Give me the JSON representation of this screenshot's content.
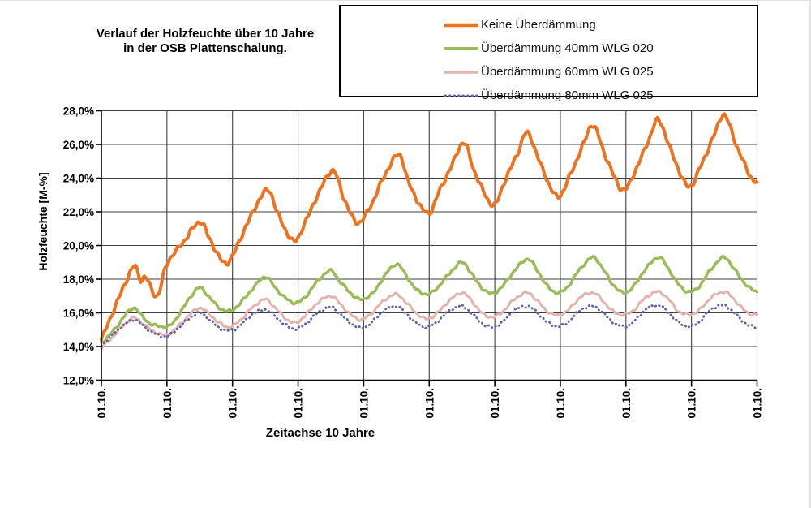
{
  "chart_data": {
    "type": "line",
    "title": "Verlauf der Holzfeuchte über 10 Jahre in der OSB Plattenschalung.",
    "title_lines": [
      "Verlauf der Holzfeuchte über 10 Jahre",
      "in der OSB Plattenschalung."
    ],
    "xlabel": "Zeitachse 10 Jahre",
    "ylabel": "Holzfeuchte [M-%]",
    "xlim": [
      0,
      10
    ],
    "ylim": [
      12,
      28
    ],
    "grid": true,
    "legend_position": "top-right",
    "axis_color": "#000000",
    "grid_color": "#3f3f3f",
    "y_tick_values": [
      12,
      14,
      16,
      18,
      20,
      22,
      24,
      26,
      28
    ],
    "y_tick_labels": [
      "12,0%",
      "14,0%",
      "16,0%",
      "18,0%",
      "20,0%",
      "22,0%",
      "24,0%",
      "26,0%",
      "28,0%"
    ],
    "x_tick_labels": [
      "01.10.",
      "01.10.",
      "01.10.",
      "01.10.",
      "01.10.",
      "01.10.",
      "01.10.",
      "01.10.",
      "01.10.",
      "01.10.",
      "01.10."
    ],
    "series": [
      {
        "name": "Keine Überdämmung",
        "color": "#ED7320",
        "line_style": "solid",
        "line_width": 4,
        "points": [
          [
            0,
            14.4
          ],
          [
            0.15,
            15.8
          ],
          [
            0.3,
            17.2
          ],
          [
            0.45,
            18.5
          ],
          [
            0.52,
            18.75
          ],
          [
            0.6,
            17.95
          ],
          [
            0.68,
            18.1
          ],
          [
            0.85,
            17.0
          ],
          [
            1.0,
            18.9
          ],
          [
            1.25,
            20.2
          ],
          [
            1.5,
            21.4
          ],
          [
            1.65,
            20.4
          ],
          [
            1.86,
            19.0
          ],
          [
            2.0,
            19.4
          ],
          [
            2.25,
            21.5
          ],
          [
            2.53,
            23.3
          ],
          [
            2.7,
            21.8
          ],
          [
            2.93,
            20.25
          ],
          [
            3.1,
            21.3
          ],
          [
            3.3,
            23.0
          ],
          [
            3.53,
            24.45
          ],
          [
            3.7,
            22.8
          ],
          [
            3.9,
            21.35
          ],
          [
            4.1,
            22.3
          ],
          [
            4.3,
            24.0
          ],
          [
            4.54,
            25.4
          ],
          [
            4.7,
            23.6
          ],
          [
            4.97,
            21.9
          ],
          [
            5.15,
            23.2
          ],
          [
            5.35,
            24.8
          ],
          [
            5.53,
            26.1
          ],
          [
            5.7,
            24.3
          ],
          [
            5.97,
            22.4
          ],
          [
            6.15,
            23.8
          ],
          [
            6.35,
            25.5
          ],
          [
            6.5,
            26.7
          ],
          [
            6.7,
            24.8
          ],
          [
            6.95,
            22.9
          ],
          [
            7.15,
            24.2
          ],
          [
            7.35,
            26.0
          ],
          [
            7.5,
            27.15
          ],
          [
            7.7,
            25.2
          ],
          [
            7.95,
            23.3
          ],
          [
            8.15,
            24.5
          ],
          [
            8.35,
            26.3
          ],
          [
            8.5,
            27.45
          ],
          [
            8.7,
            25.5
          ],
          [
            8.95,
            23.5
          ],
          [
            9.15,
            24.8
          ],
          [
            9.35,
            26.6
          ],
          [
            9.5,
            27.75
          ],
          [
            9.7,
            25.8
          ],
          [
            9.9,
            24.1
          ],
          [
            10,
            23.75
          ]
        ]
      },
      {
        "name": "Überdämmung 40mm WLG 020",
        "color": "#9BBB59",
        "line_style": "solid",
        "line_width": 3.5,
        "points": [
          [
            0,
            14.2
          ],
          [
            0.2,
            15.0
          ],
          [
            0.35,
            15.8
          ],
          [
            0.5,
            16.3
          ],
          [
            0.62,
            15.8
          ],
          [
            0.75,
            15.35
          ],
          [
            0.9,
            15.2
          ],
          [
            1.05,
            15.25
          ],
          [
            1.2,
            16.0
          ],
          [
            1.35,
            16.9
          ],
          [
            1.5,
            17.5
          ],
          [
            1.65,
            16.9
          ],
          [
            1.8,
            16.3
          ],
          [
            1.95,
            16.1
          ],
          [
            2.1,
            16.5
          ],
          [
            2.3,
            17.4
          ],
          [
            2.5,
            18.15
          ],
          [
            2.65,
            17.5
          ],
          [
            2.8,
            16.9
          ],
          [
            2.95,
            16.6
          ],
          [
            3.1,
            16.9
          ],
          [
            3.3,
            17.9
          ],
          [
            3.5,
            18.5
          ],
          [
            3.65,
            17.8
          ],
          [
            3.85,
            17.0
          ],
          [
            3.97,
            16.8
          ],
          [
            4.15,
            17.2
          ],
          [
            4.3,
            18.1
          ],
          [
            4.5,
            18.9
          ],
          [
            4.65,
            18.2
          ],
          [
            4.8,
            17.4
          ],
          [
            4.97,
            17.1
          ],
          [
            5.1,
            17.4
          ],
          [
            5.3,
            18.3
          ],
          [
            5.5,
            19.0
          ],
          [
            5.65,
            18.3
          ],
          [
            5.8,
            17.5
          ],
          [
            5.95,
            17.15
          ],
          [
            6.1,
            17.5
          ],
          [
            6.3,
            18.5
          ],
          [
            6.5,
            19.2
          ],
          [
            6.65,
            18.5
          ],
          [
            6.8,
            17.6
          ],
          [
            6.95,
            17.2
          ],
          [
            7.1,
            17.5
          ],
          [
            7.3,
            18.6
          ],
          [
            7.5,
            19.3
          ],
          [
            7.65,
            18.6
          ],
          [
            7.8,
            17.7
          ],
          [
            7.95,
            17.2
          ],
          [
            8.1,
            17.5
          ],
          [
            8.3,
            18.6
          ],
          [
            8.5,
            19.3
          ],
          [
            8.65,
            18.6
          ],
          [
            8.8,
            17.7
          ],
          [
            8.95,
            17.25
          ],
          [
            9.1,
            17.5
          ],
          [
            9.3,
            18.6
          ],
          [
            9.5,
            19.3
          ],
          [
            9.65,
            18.6
          ],
          [
            9.85,
            17.6
          ],
          [
            10,
            17.25
          ]
        ]
      },
      {
        "name": "Überdämmung 60mm WLG 025",
        "color": "#E4B3AD",
        "line_style": "solid",
        "line_width": 3,
        "points": [
          [
            0,
            13.9
          ],
          [
            0.2,
            14.7
          ],
          [
            0.35,
            15.3
          ],
          [
            0.5,
            15.7
          ],
          [
            0.65,
            15.3
          ],
          [
            0.8,
            14.9
          ],
          [
            1.0,
            14.7
          ],
          [
            1.2,
            15.3
          ],
          [
            1.35,
            15.9
          ],
          [
            1.5,
            16.3
          ],
          [
            1.65,
            15.9
          ],
          [
            1.8,
            15.4
          ],
          [
            1.95,
            15.15
          ],
          [
            2.1,
            15.5
          ],
          [
            2.3,
            16.3
          ],
          [
            2.5,
            16.8
          ],
          [
            2.65,
            16.3
          ],
          [
            2.8,
            15.7
          ],
          [
            2.95,
            15.4
          ],
          [
            3.1,
            15.8
          ],
          [
            3.3,
            16.6
          ],
          [
            3.5,
            17.0
          ],
          [
            3.65,
            16.5
          ],
          [
            3.8,
            15.9
          ],
          [
            3.95,
            15.6
          ],
          [
            4.1,
            15.9
          ],
          [
            4.3,
            16.7
          ],
          [
            4.5,
            17.1
          ],
          [
            4.65,
            16.6
          ],
          [
            4.8,
            16.0
          ],
          [
            4.95,
            15.65
          ],
          [
            5.1,
            15.9
          ],
          [
            5.3,
            16.7
          ],
          [
            5.5,
            17.2
          ],
          [
            5.65,
            16.7
          ],
          [
            5.8,
            16.0
          ],
          [
            5.95,
            15.75
          ],
          [
            6.1,
            16.0
          ],
          [
            6.3,
            16.8
          ],
          [
            6.5,
            17.2
          ],
          [
            6.65,
            16.7
          ],
          [
            6.8,
            16.1
          ],
          [
            6.95,
            15.85
          ],
          [
            7.1,
            16.1
          ],
          [
            7.3,
            16.9
          ],
          [
            7.5,
            17.2
          ],
          [
            7.65,
            16.7
          ],
          [
            7.8,
            16.1
          ],
          [
            7.95,
            15.9
          ],
          [
            8.1,
            16.1
          ],
          [
            8.3,
            16.9
          ],
          [
            8.5,
            17.25
          ],
          [
            8.65,
            16.8
          ],
          [
            8.8,
            16.1
          ],
          [
            8.95,
            15.9
          ],
          [
            9.1,
            16.1
          ],
          [
            9.3,
            16.9
          ],
          [
            9.5,
            17.25
          ],
          [
            9.65,
            16.8
          ],
          [
            9.85,
            16.0
          ],
          [
            10,
            15.9
          ]
        ]
      },
      {
        "name": "Überdämmung 80mm WLG 025",
        "color": "#6060AB",
        "line_style": "dotted",
        "line_width": 2.8,
        "points": [
          [
            0,
            14.05
          ],
          [
            0.2,
            14.8
          ],
          [
            0.35,
            15.3
          ],
          [
            0.5,
            15.6
          ],
          [
            0.65,
            15.2
          ],
          [
            0.8,
            14.8
          ],
          [
            1.0,
            14.6
          ],
          [
            1.2,
            15.2
          ],
          [
            1.35,
            15.7
          ],
          [
            1.5,
            16.0
          ],
          [
            1.65,
            15.6
          ],
          [
            1.8,
            15.1
          ],
          [
            1.95,
            14.95
          ],
          [
            2.1,
            15.2
          ],
          [
            2.3,
            15.9
          ],
          [
            2.5,
            16.2
          ],
          [
            2.65,
            15.8
          ],
          [
            2.8,
            15.3
          ],
          [
            2.95,
            15.05
          ],
          [
            3.1,
            15.3
          ],
          [
            3.3,
            16.0
          ],
          [
            3.5,
            16.35
          ],
          [
            3.65,
            15.9
          ],
          [
            3.8,
            15.4
          ],
          [
            3.95,
            15.1
          ],
          [
            4.1,
            15.35
          ],
          [
            4.3,
            16.1
          ],
          [
            4.5,
            16.4
          ],
          [
            4.65,
            15.95
          ],
          [
            4.8,
            15.4
          ],
          [
            4.95,
            15.15
          ],
          [
            5.1,
            15.4
          ],
          [
            5.3,
            16.1
          ],
          [
            5.5,
            16.4
          ],
          [
            5.65,
            15.95
          ],
          [
            5.8,
            15.4
          ],
          [
            5.95,
            15.15
          ],
          [
            6.1,
            15.4
          ],
          [
            6.3,
            16.15
          ],
          [
            6.5,
            16.4
          ],
          [
            6.65,
            16.0
          ],
          [
            6.8,
            15.45
          ],
          [
            6.95,
            15.2
          ],
          [
            7.1,
            15.4
          ],
          [
            7.3,
            16.15
          ],
          [
            7.5,
            16.4
          ],
          [
            7.65,
            16.0
          ],
          [
            7.8,
            15.45
          ],
          [
            7.95,
            15.2
          ],
          [
            8.1,
            15.4
          ],
          [
            8.3,
            16.2
          ],
          [
            8.5,
            16.45
          ],
          [
            8.65,
            16.0
          ],
          [
            8.8,
            15.45
          ],
          [
            8.95,
            15.2
          ],
          [
            9.1,
            15.4
          ],
          [
            9.3,
            16.2
          ],
          [
            9.5,
            16.45
          ],
          [
            9.65,
            16.0
          ],
          [
            9.85,
            15.3
          ],
          [
            10,
            15.15
          ]
        ]
      }
    ]
  }
}
